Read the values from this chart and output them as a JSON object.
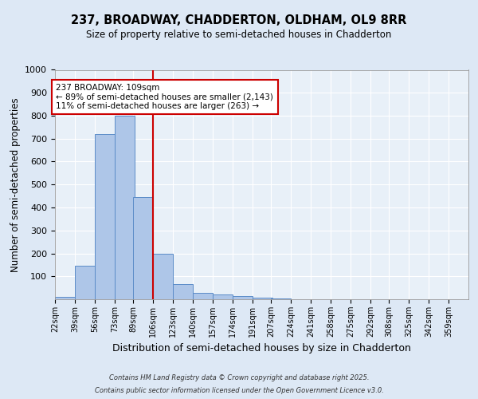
{
  "title1": "237, BROADWAY, CHADDERTON, OLDHAM, OL9 8RR",
  "title2": "Size of property relative to semi-detached houses in Chadderton",
  "xlabel": "Distribution of semi-detached houses by size in Chadderton",
  "ylabel": "Number of semi-detached properties",
  "bin_labels": [
    "22sqm",
    "39sqm",
    "56sqm",
    "73sqm",
    "89sqm",
    "106sqm",
    "123sqm",
    "140sqm",
    "157sqm",
    "174sqm",
    "191sqm",
    "207sqm",
    "224sqm",
    "241sqm",
    "258sqm",
    "275sqm",
    "292sqm",
    "308sqm",
    "325sqm",
    "342sqm",
    "359sqm"
  ],
  "bin_left_edges": [
    22,
    39,
    56,
    73,
    89,
    106,
    123,
    140,
    157,
    174,
    191,
    207,
    224,
    241,
    258,
    275,
    292,
    308,
    325,
    342,
    359
  ],
  "bar_heights": [
    10,
    145,
    720,
    800,
    445,
    200,
    65,
    27,
    22,
    13,
    8,
    5,
    0,
    0,
    0,
    0,
    0,
    0,
    0,
    0,
    0
  ],
  "bar_color": "#aec6e8",
  "bar_edge_color": "#5b8cc8",
  "vline_x": 106,
  "vline_color": "#cc0000",
  "annotation_title": "237 BROADWAY: 109sqm",
  "annotation_line1": "← 89% of semi-detached houses are smaller (2,143)",
  "annotation_line2": "11% of semi-detached houses are larger (263) →",
  "annotation_box_color": "#cc0000",
  "ylim": [
    0,
    1000
  ],
  "yticks": [
    100,
    200,
    300,
    400,
    500,
    600,
    700,
    800,
    900,
    1000
  ],
  "footnote1": "Contains HM Land Registry data © Crown copyright and database right 2025.",
  "footnote2": "Contains public sector information licensed under the Open Government Licence v3.0.",
  "bg_color": "#dde8f5",
  "plot_bg_color": "#e8f0f8"
}
